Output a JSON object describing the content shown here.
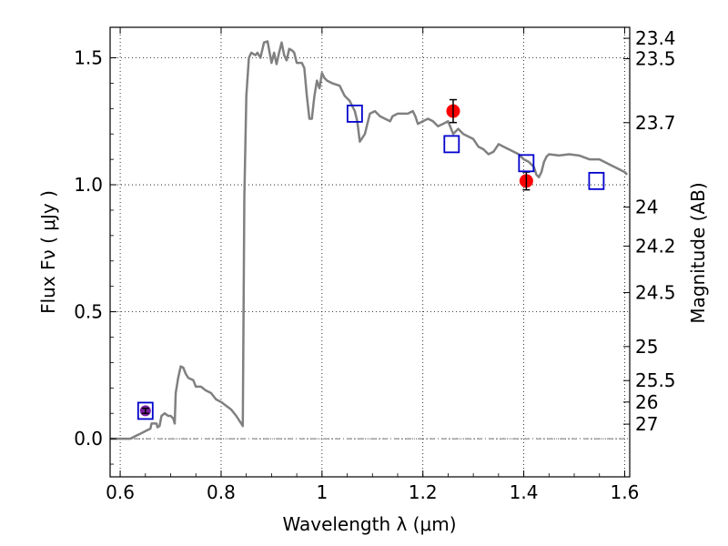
{
  "chart_data": {
    "type": "line",
    "title": "",
    "xlabel": "Wavelength  λ (μm)",
    "ylabel": "Flux  Fν  ( μJy )",
    "y2label": "Magnitude (AB)",
    "xlim": [
      0.58,
      1.61
    ],
    "ylim": [
      -0.15,
      1.62
    ],
    "grid": true,
    "legend": "none",
    "x_ticks": [
      0.6,
      0.8,
      1.0,
      1.2,
      1.4,
      1.6
    ],
    "x_tick_labels": [
      "0.6",
      "0.8",
      "1",
      "1.2",
      "1.4",
      "1.6"
    ],
    "y_ticks": [
      0.0,
      0.5,
      1.0,
      1.5
    ],
    "y_tick_labels": [
      "0.0",
      "0.5",
      "1.0",
      "1.5"
    ],
    "y2_ticks": [
      {
        "label": "23.4",
        "flux": 1.5768
      },
      {
        "label": "23.5",
        "flux": 1.4962
      },
      {
        "label": "23.7",
        "flux": 1.2445
      },
      {
        "label": "24",
        "flux": 0.9121
      },
      {
        "label": "24.2",
        "flux": 0.7586
      },
      {
        "label": "24.5",
        "flux": 0.5754
      },
      {
        "label": "25",
        "flux": 0.3631
      },
      {
        "label": "25.5",
        "flux": 0.2291
      },
      {
        "label": "26",
        "flux": 0.1445
      },
      {
        "label": "27",
        "flux": 0.0575
      }
    ],
    "series": [
      {
        "kind": "line",
        "color": "#808080",
        "points": [
          [
            0.58,
            0.0
          ],
          [
            0.62,
            0.0
          ],
          [
            0.63,
            0.01
          ],
          [
            0.64,
            0.02
          ],
          [
            0.65,
            0.03
          ],
          [
            0.66,
            0.04
          ],
          [
            0.662,
            0.06
          ],
          [
            0.672,
            0.06
          ],
          [
            0.674,
            0.045
          ],
          [
            0.678,
            0.05
          ],
          [
            0.682,
            0.09
          ],
          [
            0.688,
            0.1
          ],
          [
            0.695,
            0.09
          ],
          [
            0.7,
            0.09
          ],
          [
            0.705,
            0.08
          ],
          [
            0.708,
            0.06
          ],
          [
            0.71,
            0.18
          ],
          [
            0.715,
            0.24
          ],
          [
            0.72,
            0.285
          ],
          [
            0.725,
            0.28
          ],
          [
            0.73,
            0.255
          ],
          [
            0.735,
            0.24
          ],
          [
            0.74,
            0.235
          ],
          [
            0.745,
            0.23
          ],
          [
            0.75,
            0.205
          ],
          [
            0.76,
            0.205
          ],
          [
            0.77,
            0.19
          ],
          [
            0.78,
            0.18
          ],
          [
            0.79,
            0.155
          ],
          [
            0.8,
            0.145
          ],
          [
            0.81,
            0.13
          ],
          [
            0.82,
            0.115
          ],
          [
            0.83,
            0.09
          ],
          [
            0.84,
            0.06
          ],
          [
            0.843,
            0.05
          ],
          [
            0.846,
            0.95
          ],
          [
            0.85,
            1.35
          ],
          [
            0.855,
            1.5
          ],
          [
            0.86,
            1.52
          ],
          [
            0.868,
            1.51
          ],
          [
            0.872,
            1.52
          ],
          [
            0.878,
            1.5
          ],
          [
            0.885,
            1.56
          ],
          [
            0.892,
            1.565
          ],
          [
            0.9,
            1.48
          ],
          [
            0.905,
            1.52
          ],
          [
            0.91,
            1.475
          ],
          [
            0.915,
            1.52
          ],
          [
            0.92,
            1.56
          ],
          [
            0.925,
            1.51
          ],
          [
            0.93,
            1.49
          ],
          [
            0.935,
            1.535
          ],
          [
            0.94,
            1.53
          ],
          [
            0.945,
            1.52
          ],
          [
            0.95,
            1.48
          ],
          [
            0.96,
            1.48
          ],
          [
            0.965,
            1.46
          ],
          [
            0.97,
            1.35
          ],
          [
            0.975,
            1.26
          ],
          [
            0.98,
            1.26
          ],
          [
            0.985,
            1.35
          ],
          [
            0.99,
            1.41
          ],
          [
            0.995,
            1.38
          ],
          [
            1.0,
            1.44
          ],
          [
            1.005,
            1.42
          ],
          [
            1.01,
            1.41
          ],
          [
            1.02,
            1.4
          ],
          [
            1.035,
            1.39
          ],
          [
            1.045,
            1.35
          ],
          [
            1.055,
            1.33
          ],
          [
            1.06,
            1.31
          ],
          [
            1.065,
            1.29
          ],
          [
            1.07,
            1.25
          ],
          [
            1.075,
            1.17
          ],
          [
            1.08,
            1.185
          ],
          [
            1.085,
            1.2
          ],
          [
            1.09,
            1.24
          ],
          [
            1.095,
            1.28
          ],
          [
            1.105,
            1.29
          ],
          [
            1.115,
            1.27
          ],
          [
            1.125,
            1.26
          ],
          [
            1.135,
            1.25
          ],
          [
            1.14,
            1.27
          ],
          [
            1.15,
            1.28
          ],
          [
            1.16,
            1.28
          ],
          [
            1.17,
            1.28
          ],
          [
            1.18,
            1.29
          ],
          [
            1.185,
            1.27
          ],
          [
            1.19,
            1.24
          ],
          [
            1.2,
            1.25
          ],
          [
            1.21,
            1.26
          ],
          [
            1.22,
            1.25
          ],
          [
            1.23,
            1.23
          ],
          [
            1.24,
            1.24
          ],
          [
            1.25,
            1.25
          ],
          [
            1.26,
            1.2
          ],
          [
            1.27,
            1.22
          ],
          [
            1.28,
            1.2
          ],
          [
            1.29,
            1.19
          ],
          [
            1.3,
            1.18
          ],
          [
            1.31,
            1.15
          ],
          [
            1.32,
            1.14
          ],
          [
            1.33,
            1.12
          ],
          [
            1.34,
            1.13
          ],
          [
            1.35,
            1.16
          ],
          [
            1.36,
            1.15
          ],
          [
            1.37,
            1.14
          ],
          [
            1.38,
            1.13
          ],
          [
            1.39,
            1.12
          ],
          [
            1.4,
            1.1
          ],
          [
            1.41,
            1.09
          ],
          [
            1.42,
            1.07
          ],
          [
            1.425,
            1.04
          ],
          [
            1.43,
            1.03
          ],
          [
            1.435,
            1.05
          ],
          [
            1.44,
            1.09
          ],
          [
            1.445,
            1.11
          ],
          [
            1.45,
            1.12
          ],
          [
            1.47,
            1.115
          ],
          [
            1.49,
            1.12
          ],
          [
            1.51,
            1.115
          ],
          [
            1.53,
            1.1
          ],
          [
            1.55,
            1.1
          ],
          [
            1.57,
            1.08
          ],
          [
            1.585,
            1.065
          ],
          [
            1.6,
            1.05
          ],
          [
            1.605,
            1.04
          ]
        ]
      },
      {
        "kind": "observed",
        "color": "#ff0000",
        "points": [
          {
            "x": 0.65,
            "y": 0.11,
            "yerr": 0.01
          },
          {
            "x": 1.26,
            "y": 1.29,
            "yerr": 0.045
          },
          {
            "x": 1.405,
            "y": 1.015,
            "yerr": 0.035
          }
        ]
      },
      {
        "kind": "model-photometry",
        "color": "#0000cc",
        "points": [
          {
            "x": 0.65,
            "y": 0.11
          },
          {
            "x": 1.065,
            "y": 1.28
          },
          {
            "x": 1.257,
            "y": 1.16
          },
          {
            "x": 1.405,
            "y": 1.085
          },
          {
            "x": 1.544,
            "y": 1.015
          }
        ]
      }
    ],
    "hline": {
      "y": 0.0,
      "style": "dash-dot"
    },
    "colors": {
      "axes": "#000000",
      "grid": "#000000",
      "observed_dark": "#7a1fa0"
    }
  }
}
